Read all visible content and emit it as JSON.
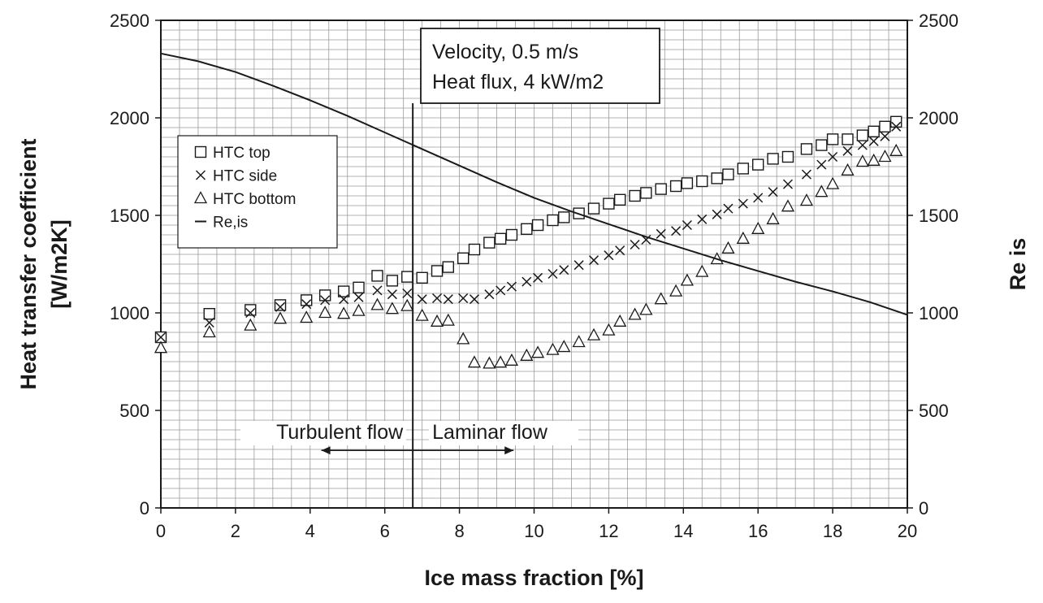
{
  "chart_data": {
    "type": "scatter",
    "title": "",
    "xlabel": "Ice mass fraction [%]",
    "ylabel_line1": "Heat transfer coefficient",
    "ylabel_line2": "[W/m2K]",
    "y2label": "Re is",
    "xlim": [
      0,
      20
    ],
    "ylim": [
      0,
      2500
    ],
    "y2lim": [
      0,
      2500
    ],
    "x_ticks": [
      "0",
      "2",
      "4",
      "6",
      "8",
      "10",
      "12",
      "14",
      "16",
      "18",
      "20"
    ],
    "y_ticks": [
      "0",
      "500",
      "1000",
      "1500",
      "2000",
      "2500"
    ],
    "y2_ticks": [
      "0",
      "500",
      "1000",
      "1500",
      "2000",
      "2500"
    ],
    "grid": true,
    "legend_position": "top-left",
    "annotation_box": {
      "line1": "Velocity, 0.5 m/s",
      "line2": "Heat flux, 4 kW/m2"
    },
    "flow_labels": {
      "turbulent": "Turbulent flow",
      "laminar": "Laminar flow"
    },
    "transition_x": 6.75,
    "arrow_from_x": 4.3,
    "arrow_to_x": 9.45,
    "arrow_y": 295,
    "series": [
      {
        "name": "HTC top",
        "marker": "square",
        "x": [
          0,
          1.3,
          2.4,
          3.2,
          3.9,
          4.4,
          4.9,
          5.3,
          5.8,
          6.2,
          6.6,
          7.0,
          7.4,
          7.7,
          8.1,
          8.4,
          8.8,
          9.1,
          9.4,
          9.8,
          10.1,
          10.5,
          10.8,
          11.2,
          11.6,
          12.0,
          12.3,
          12.7,
          13.0,
          13.4,
          13.8,
          14.1,
          14.5,
          14.9,
          15.2,
          15.6,
          16.0,
          16.4,
          16.8,
          17.3,
          17.7,
          18.0,
          18.4,
          18.8,
          19.1,
          19.4,
          19.7
        ],
        "y": [
          875,
          995,
          1015,
          1040,
          1065,
          1090,
          1110,
          1130,
          1190,
          1165,
          1185,
          1180,
          1215,
          1235,
          1280,
          1325,
          1360,
          1380,
          1400,
          1430,
          1450,
          1475,
          1490,
          1510,
          1535,
          1560,
          1580,
          1600,
          1615,
          1635,
          1650,
          1665,
          1675,
          1690,
          1710,
          1740,
          1760,
          1790,
          1800,
          1840,
          1860,
          1890,
          1890,
          1910,
          1930,
          1955,
          1980
        ]
      },
      {
        "name": "HTC side",
        "marker": "x",
        "x": [
          0,
          1.3,
          2.4,
          3.2,
          3.9,
          4.4,
          4.9,
          5.3,
          5.8,
          6.2,
          6.6,
          7.0,
          7.4,
          7.7,
          8.1,
          8.4,
          8.8,
          9.1,
          9.4,
          9.8,
          10.1,
          10.5,
          10.8,
          11.2,
          11.6,
          12.0,
          12.3,
          12.7,
          13.0,
          13.4,
          13.8,
          14.1,
          14.5,
          14.9,
          15.2,
          15.6,
          16.0,
          16.4,
          16.8,
          17.3,
          17.7,
          18.0,
          18.4,
          18.8,
          19.1,
          19.4,
          19.7
        ],
        "y": [
          875,
          950,
          1000,
          1030,
          1045,
          1065,
          1070,
          1080,
          1115,
          1095,
          1100,
          1070,
          1075,
          1070,
          1075,
          1070,
          1095,
          1115,
          1135,
          1160,
          1180,
          1200,
          1220,
          1245,
          1270,
          1295,
          1320,
          1350,
          1375,
          1405,
          1420,
          1450,
          1480,
          1505,
          1535,
          1560,
          1590,
          1620,
          1660,
          1710,
          1760,
          1800,
          1830,
          1860,
          1880,
          1905,
          1955
        ]
      },
      {
        "name": "HTC bottom",
        "marker": "triangle",
        "x": [
          0,
          1.3,
          2.4,
          3.2,
          3.9,
          4.4,
          4.9,
          5.3,
          5.8,
          6.2,
          6.6,
          7.0,
          7.4,
          7.7,
          8.1,
          8.4,
          8.8,
          9.1,
          9.4,
          9.8,
          10.1,
          10.5,
          10.8,
          11.2,
          11.6,
          12.0,
          12.3,
          12.7,
          13.0,
          13.4,
          13.8,
          14.1,
          14.5,
          14.9,
          15.2,
          15.6,
          16.0,
          16.4,
          16.8,
          17.3,
          17.7,
          18.0,
          18.4,
          18.8,
          19.1,
          19.4,
          19.7
        ],
        "y": [
          820,
          900,
          935,
          970,
          975,
          1000,
          995,
          1010,
          1040,
          1020,
          1035,
          985,
          955,
          960,
          865,
          745,
          740,
          745,
          755,
          780,
          795,
          810,
          825,
          850,
          885,
          910,
          955,
          990,
          1015,
          1070,
          1110,
          1165,
          1210,
          1275,
          1330,
          1380,
          1430,
          1480,
          1545,
          1575,
          1620,
          1660,
          1730,
          1775,
          1780,
          1800,
          1830
        ]
      },
      {
        "name": "Re,is",
        "marker": "line",
        "axis": "right",
        "x": [
          0,
          1,
          2,
          3,
          4,
          5,
          6,
          7,
          8,
          9,
          10,
          11,
          12,
          13,
          14,
          15,
          16,
          17,
          18,
          19,
          20
        ],
        "y": [
          2330,
          2290,
          2235,
          2165,
          2090,
          2010,
          1925,
          1840,
          1755,
          1670,
          1590,
          1520,
          1455,
          1390,
          1330,
          1270,
          1215,
          1160,
          1110,
          1055,
          990
        ]
      }
    ]
  }
}
